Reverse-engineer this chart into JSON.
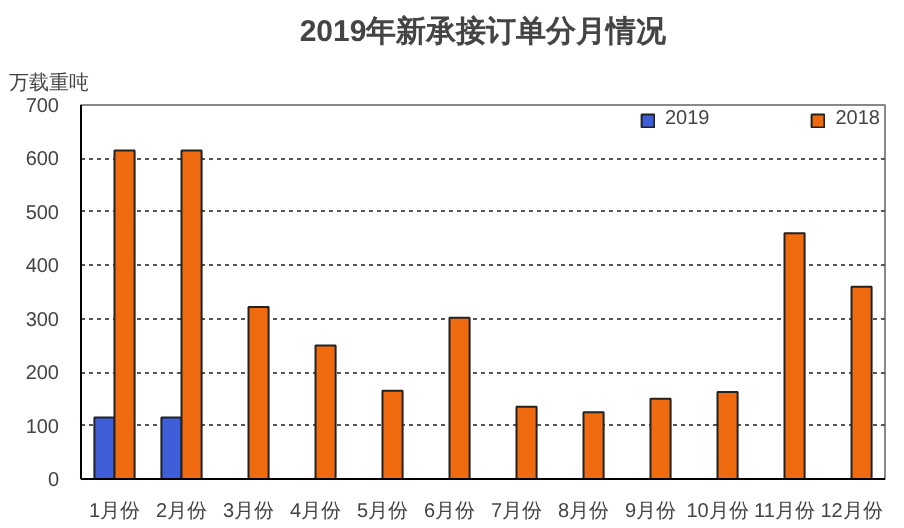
{
  "chart_data": {
    "type": "bar",
    "title": "2019年新承接订单分月情况",
    "ylabel": "万载重吨",
    "categories": [
      "1月份",
      "2月份",
      "3月份",
      "4月份",
      "5月份",
      "6月份",
      "7月份",
      "8月份",
      "9月份",
      "10月份",
      "11月份",
      "12月份"
    ],
    "series": [
      {
        "name": "2019",
        "color": "#3f5fd8",
        "values": [
          115,
          115,
          null,
          null,
          null,
          null,
          null,
          null,
          null,
          null,
          null,
          null
        ]
      },
      {
        "name": "2018",
        "color": "#f06a10",
        "values": [
          615,
          615,
          322,
          250,
          165,
          302,
          135,
          125,
          150,
          163,
          460,
          360
        ]
      }
    ],
    "ylim": [
      0,
      700
    ],
    "yticks": [
      0,
      100,
      200,
      300,
      400,
      500,
      600,
      700
    ],
    "grid": "y",
    "legend": "top right"
  }
}
